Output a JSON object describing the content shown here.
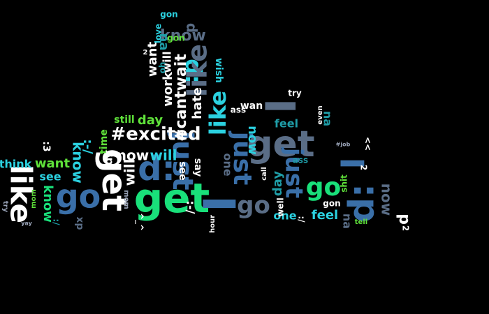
{
  "background_color": "#000000",
  "palette": {
    "blue": "#3a6fa8",
    "slate": "#5a6d86",
    "teal": "#1f9ea8",
    "green": "#19e07a",
    "lime": "#5fe13a",
    "cyan": "#2bd1e0",
    "white": "#ffffff",
    "grey": "#9aa4b8"
  },
  "words": [
    {
      "text": "get",
      "color": "green",
      "size": 58,
      "rot": 0
    },
    {
      "text": "get",
      "color": "white",
      "size": 48,
      "rot": 90
    },
    {
      "text": "get",
      "color": "slate",
      "size": 52,
      "rot": 0
    },
    {
      "text": "I",
      "color": "blue",
      "size": 64,
      "rot": 90
    },
    {
      "text": "I",
      "color": "slate",
      "size": 60,
      "rot": 90
    },
    {
      "text": "I",
      "color": "blue",
      "size": 46,
      "rot": 90
    },
    {
      "text": "go",
      "color": "blue",
      "size": 46,
      "rot": 0
    },
    {
      "text": "go",
      "color": "slate",
      "size": 34,
      "rot": 0
    },
    {
      "text": "go",
      "color": "green",
      "size": 36,
      "rot": 0
    },
    {
      "text": "d:",
      "color": "blue",
      "size": 48,
      "rot": 0
    },
    {
      "text": "d:",
      "color": "blue",
      "size": 50,
      "rot": -90
    },
    {
      "text": "d:",
      "color": "cyan",
      "size": 32,
      "rot": 90
    },
    {
      "text": "like",
      "color": "white",
      "size": 42,
      "rot": 90
    },
    {
      "text": "like",
      "color": "slate",
      "size": 38,
      "rot": -90
    },
    {
      "text": "like",
      "color": "cyan",
      "size": 32,
      "rot": -90
    },
    {
      "text": "just",
      "color": "blue",
      "size": 40,
      "rot": 90
    },
    {
      "text": "just",
      "color": "blue",
      "size": 36,
      "rot": 90
    },
    {
      "text": "just",
      "color": "blue",
      "size": 34,
      "rot": 90
    },
    {
      "text": "#excited",
      "color": "white",
      "size": 26,
      "rot": 0
    },
    {
      "text": "#cantwait",
      "color": "white",
      "size": 22,
      "rot": -90
    },
    {
      "text": "now",
      "color": "white",
      "size": 20,
      "rot": 0
    },
    {
      "text": "now",
      "color": "cyan",
      "size": 18,
      "rot": 90
    },
    {
      "text": "now",
      "color": "slate",
      "size": 20,
      "rot": 90
    },
    {
      "text": "know",
      "color": "slate",
      "size": 22,
      "rot": 0
    },
    {
      "text": "know",
      "color": "cyan",
      "size": 20,
      "rot": 90
    },
    {
      "text": "know",
      "color": "green",
      "size": 18,
      "rot": 90
    },
    {
      "text": "want",
      "color": "lime",
      "size": 18,
      "rot": 0
    },
    {
      "text": "want",
      "color": "white",
      "size": 18,
      "rot": -90
    },
    {
      "text": "will",
      "color": "white",
      "size": 20,
      "rot": -90
    },
    {
      "text": "will",
      "color": "white",
      "size": 16,
      "rot": -90
    },
    {
      "text": "will",
      "color": "cyan",
      "size": 20,
      "rot": 0
    },
    {
      "text": "work",
      "color": "white",
      "size": 18,
      "rot": -90
    },
    {
      "text": "hate",
      "color": "white",
      "size": 18,
      "rot": -90
    },
    {
      "text": "day",
      "color": "lime",
      "size": 18,
      "rot": 0
    },
    {
      "text": "day",
      "color": "teal",
      "size": 18,
      "rot": -90
    },
    {
      "text": "feel",
      "color": "cyan",
      "size": 18,
      "rot": 0
    },
    {
      "text": "feel",
      "color": "teal",
      "size": 16,
      "rot": 0
    },
    {
      "text": "think",
      "color": "cyan",
      "size": 16,
      "rot": 0
    },
    {
      "text": "see",
      "color": "cyan",
      "size": 16,
      "rot": 0
    },
    {
      "text": "see",
      "color": "white",
      "size": 14,
      "rot": 90
    },
    {
      "text": "say",
      "color": "white",
      "size": 14,
      "rot": 90
    },
    {
      "text": "one",
      "color": "cyan",
      "size": 16,
      "rot": 0
    },
    {
      "text": "one",
      "color": "slate",
      "size": 16,
      "rot": 90
    },
    {
      "text": "still",
      "color": "lime",
      "size": 14,
      "rot": 0
    },
    {
      "text": "time",
      "color": "lime",
      "size": 14,
      "rot": -90
    },
    {
      "text": "love",
      "color": "cyan",
      "size": 12,
      "rot": -90
    },
    {
      "text": "wish",
      "color": "cyan",
      "size": 14,
      "rot": 90
    },
    {
      "text": "xp",
      "color": "white",
      "size": 16,
      "rot": 90
    },
    {
      "text": "xp",
      "color": "slate",
      "size": 14,
      "rot": 90
    },
    {
      "text": "na",
      "color": "teal",
      "size": 16,
      "rot": 90
    },
    {
      "text": "na",
      "color": "slate",
      "size": 16,
      "rot": 90
    },
    {
      "text": "na",
      "color": "teal",
      "size": 18,
      "rot": 90
    },
    {
      "text": "gon",
      "color": "cyan",
      "size": 12,
      "rot": 0
    },
    {
      "text": "gon",
      "color": "white",
      "size": 12,
      "rot": 0
    },
    {
      "text": "gon",
      "color": "lime",
      "size": 12,
      "rot": 0
    },
    {
      "text": "p",
      "color": "white",
      "size": 22,
      "rot": 90
    },
    {
      "text": "p",
      "color": "slate",
      "size": 20,
      "rot": -90
    },
    {
      "text": "ass",
      "color": "teal",
      "size": 12,
      "rot": 0
    },
    {
      "text": "ass",
      "color": "white",
      "size": 12,
      "rot": 0
    },
    {
      "text": "wan",
      "color": "white",
      "size": 14,
      "rot": 0
    },
    {
      "text": "call",
      "color": "white",
      "size": 10,
      "rot": -90
    },
    {
      "text": "shit",
      "color": "lime",
      "size": 12,
      "rot": -90
    },
    {
      "text": "well",
      "color": "white",
      "size": 12,
      "rot": -90
    },
    {
      "text": "tell",
      "color": "lime",
      "size": 10,
      "rot": 0
    },
    {
      "text": "try",
      "color": "white",
      "size": 12,
      "rot": 0
    },
    {
      "text": "try",
      "color": "grey",
      "size": 10,
      "rot": 90
    },
    {
      "text": "mom",
      "color": "grey",
      "size": 10,
      "rot": 90
    },
    {
      "text": "mom",
      "color": "lime",
      "size": 10,
      "rot": -90
    },
    {
      "text": "even",
      "color": "white",
      "size": 10,
      "rot": -90
    },
    {
      "text": "hour",
      "color": "white",
      "size": 10,
      "rot": -90
    },
    {
      "text": "yay",
      "color": "grey",
      "size": 8,
      "rot": 0
    },
    {
      "text": "#job",
      "color": "grey",
      "size": 8,
      "rot": 0
    },
    {
      "text": ":-/",
      "color": "cyan",
      "size": 18,
      "rot": 90
    },
    {
      "text": ":-/",
      "color": "white",
      "size": 16,
      "rot": 90
    },
    {
      "text": ":3",
      "color": "white",
      "size": 14,
      "rot": 90
    },
    {
      "text": ":/",
      "color": "white",
      "size": 12,
      "rot": 90
    },
    {
      "text": ":/",
      "color": "teal",
      "size": 12,
      "rot": 90
    },
    {
      "text": "^_^",
      "color": "white",
      "size": 12,
      "rot": 90
    },
    {
      "text": "<<",
      "color": "white",
      "size": 12,
      "rot": 90
    },
    {
      "text": "2",
      "color": "white",
      "size": 12,
      "rot": 90
    },
    {
      "text": "2",
      "color": "white",
      "size": 12,
      "rot": 90
    },
    {
      "text": "2",
      "color": "white",
      "size": 10,
      "rot": 0
    },
    {
      "text": "oh",
      "color": "teal",
      "size": 12,
      "rot": -90
    },
    {
      "text": "ill",
      "color": "white",
      "size": 18,
      "rot": 90
    }
  ]
}
